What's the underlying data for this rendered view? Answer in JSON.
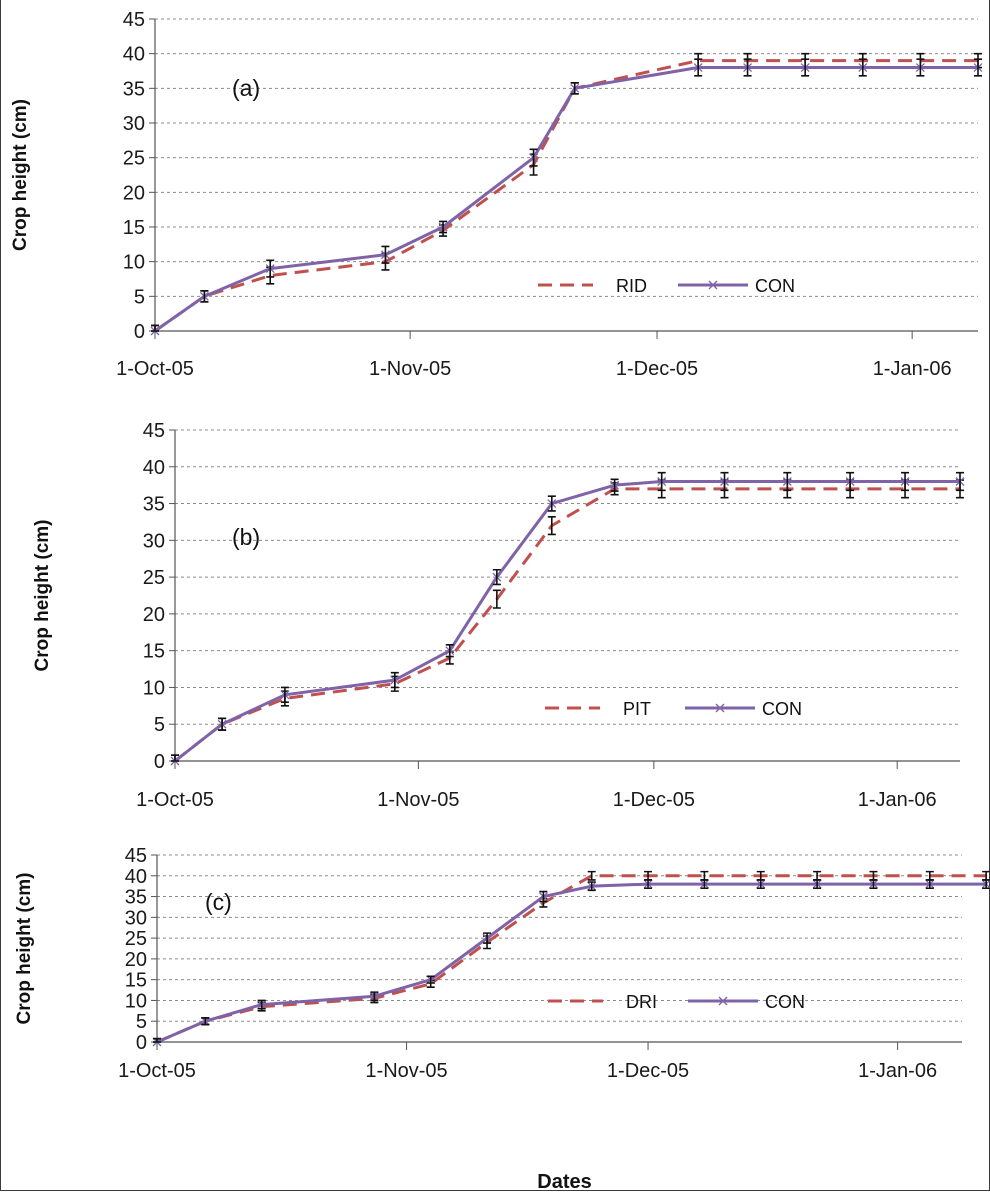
{
  "chart_data": [
    {
      "type": "line",
      "panel_label": "(a)",
      "ylabel": "Crop height (cm)",
      "xlabel": "",
      "ylim": [
        0,
        45
      ],
      "y_ticks": [
        "0",
        "5",
        "10",
        "15",
        "20",
        "25",
        "30",
        "35",
        "40",
        "45"
      ],
      "x_tick_labels": [
        "1-Oct-05",
        "1-Nov-05",
        "1-Dec-05",
        "1-Jan-06"
      ],
      "x_ticks_days": [
        0,
        31,
        61,
        92
      ],
      "x_range_days": [
        0,
        100
      ],
      "grid": "horizontal dashed",
      "legend": "bottom-right",
      "x_days": [
        0,
        6,
        14,
        28,
        35,
        46,
        51,
        66,
        72,
        79,
        86,
        93,
        100
      ],
      "series": [
        {
          "name": "RID",
          "color": "#c0504d",
          "style": "dashed",
          "values": [
            0,
            5,
            8,
            10,
            14.5,
            24,
            35,
            39,
            39,
            39,
            39,
            39,
            39
          ],
          "errors": [
            0.8,
            0.8,
            1.2,
            1.2,
            0.8,
            1.5,
            0.8,
            1.0,
            1.0,
            1.0,
            1.0,
            1.0,
            1.0
          ]
        },
        {
          "name": "CON",
          "color": "#7f63a8",
          "style": "solid-x",
          "values": [
            0,
            5,
            9,
            11,
            15,
            25,
            35,
            38,
            38,
            38,
            38,
            38,
            38
          ],
          "errors": [
            0.8,
            0.8,
            1.2,
            1.2,
            0.8,
            1.2,
            0.8,
            1.2,
            1.2,
            1.2,
            1.2,
            1.2,
            1.2
          ]
        }
      ]
    },
    {
      "type": "line",
      "panel_label": "(b)",
      "ylabel": "Crop height (cm)",
      "xlabel": "",
      "ylim": [
        0,
        45
      ],
      "y_ticks": [
        "0",
        "5",
        "10",
        "15",
        "20",
        "25",
        "30",
        "35",
        "40",
        "45"
      ],
      "x_tick_labels": [
        "1-Oct-05",
        "1-Nov-05",
        "1-Dec-05",
        "1-Jan-06"
      ],
      "x_ticks_days": [
        0,
        31,
        61,
        92
      ],
      "x_range_days": [
        0,
        100
      ],
      "grid": "horizontal dashed",
      "legend": "bottom-right",
      "x_days": [
        0,
        6,
        14,
        28,
        35,
        41,
        48,
        56,
        62,
        70,
        78,
        86,
        93,
        100
      ],
      "series": [
        {
          "name": "PIT",
          "color": "#c0504d",
          "style": "dashed",
          "values": [
            0,
            5,
            8.5,
            10.5,
            14,
            22,
            32,
            37,
            37,
            37,
            37,
            37,
            37,
            37
          ],
          "errors": [
            0.8,
            0.8,
            1.0,
            1.0,
            0.8,
            1.2,
            1.2,
            0.8,
            1.2,
            1.2,
            1.2,
            1.2,
            1.2,
            1.2
          ]
        },
        {
          "name": "CON",
          "color": "#7f63a8",
          "style": "solid-x",
          "values": [
            0,
            5,
            9,
            11,
            15,
            25,
            35,
            37.5,
            38,
            38,
            38,
            38,
            38,
            38
          ],
          "errors": [
            0.8,
            0.8,
            1.0,
            1.0,
            0.8,
            1.0,
            1.0,
            0.8,
            1.2,
            1.2,
            1.2,
            1.2,
            1.2,
            1.2
          ]
        }
      ]
    },
    {
      "type": "line",
      "panel_label": "(c)",
      "ylabel": "Crop height (cm)",
      "xlabel": "Dates",
      "ylim": [
        0,
        45
      ],
      "y_ticks": [
        "0",
        "5",
        "10",
        "15",
        "20",
        "25",
        "30",
        "35",
        "40",
        "45"
      ],
      "x_tick_labels": [
        "1-Oct-05",
        "1-Nov-05",
        "1-Dec-05",
        "1-Jan-06"
      ],
      "x_ticks_days": [
        0,
        31,
        61,
        92
      ],
      "x_range_days": [
        0,
        100
      ],
      "grid": "horizontal dashed",
      "legend": "bottom-right",
      "x_days": [
        0,
        6,
        13,
        27,
        34,
        41,
        48,
        54,
        61,
        68,
        75,
        82,
        89,
        96,
        103
      ],
      "series": [
        {
          "name": "DRI",
          "color": "#c0504d",
          "style": "dashed",
          "values": [
            0,
            5,
            8.5,
            10.5,
            14,
            24,
            33.5,
            40,
            40,
            40,
            40,
            40,
            40,
            40,
            40
          ],
          "errors": [
            0.8,
            0.8,
            1.0,
            1.0,
            0.8,
            1.5,
            1.0,
            1.0,
            1.0,
            1.0,
            1.0,
            1.0,
            1.0,
            1.0,
            1.0
          ]
        },
        {
          "name": "CON",
          "color": "#7f63a8",
          "style": "solid-x",
          "values": [
            0,
            5,
            9,
            11,
            15,
            25,
            35,
            37.5,
            38,
            38,
            38,
            38,
            38,
            38,
            38
          ],
          "errors": [
            0.8,
            0.8,
            1.0,
            1.0,
            0.8,
            1.2,
            1.2,
            1.0,
            1.0,
            1.0,
            1.0,
            1.0,
            1.0,
            1.0,
            1.0
          ]
        }
      ]
    }
  ]
}
